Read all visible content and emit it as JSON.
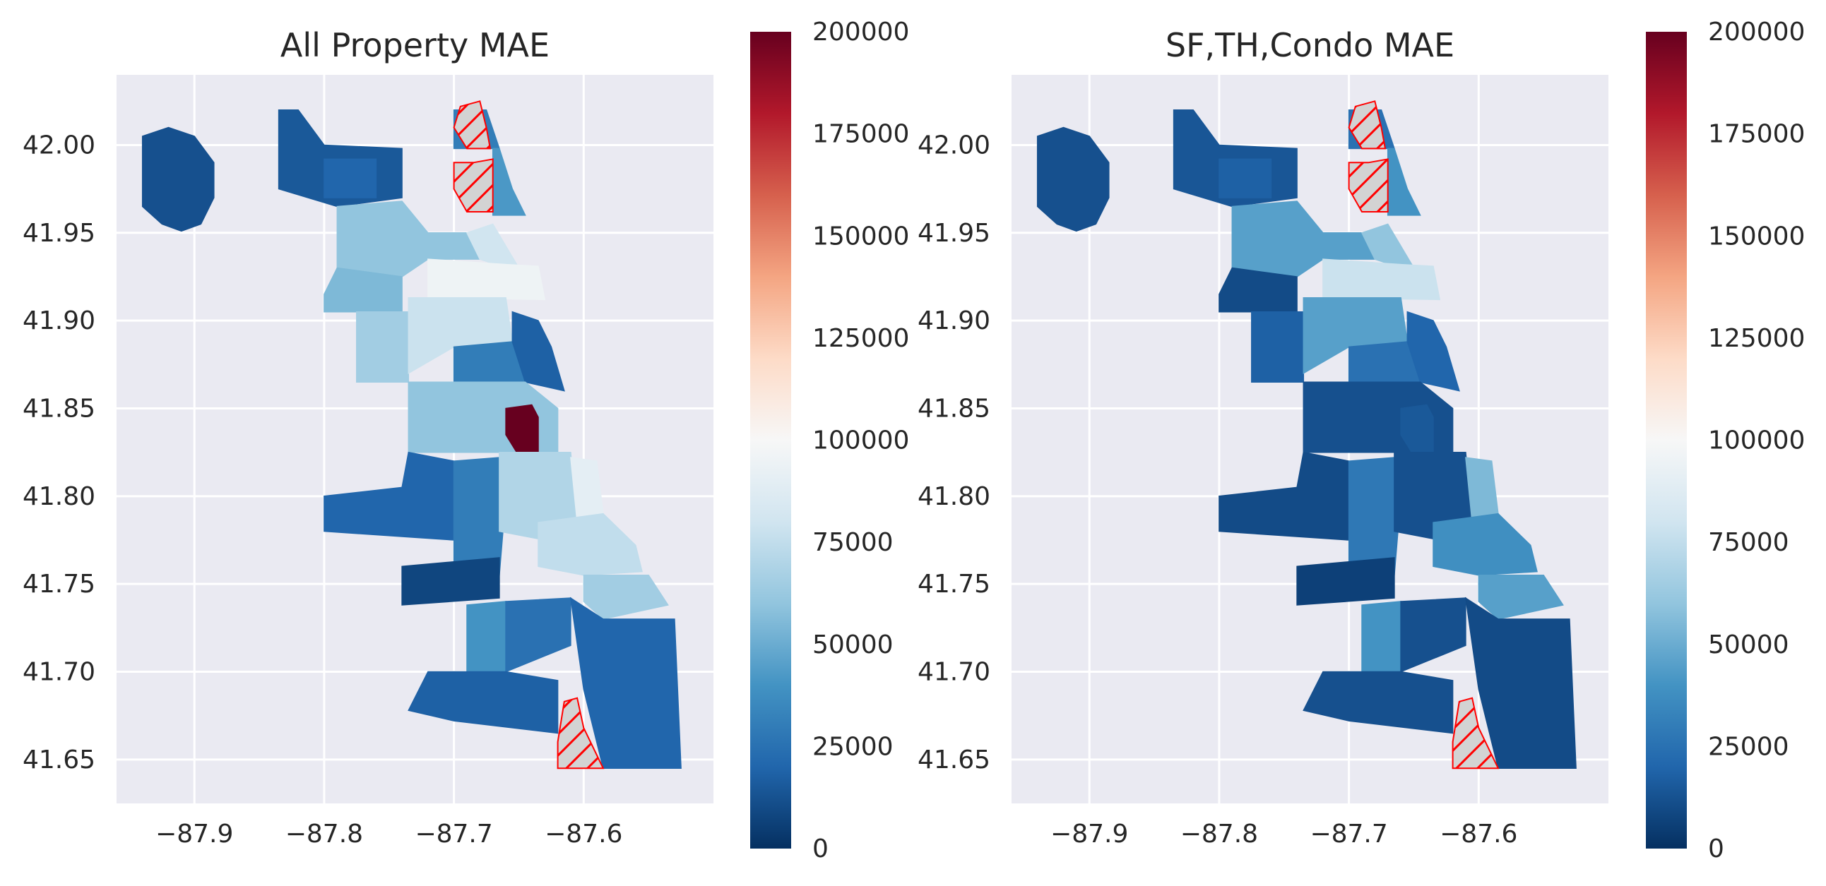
{
  "figure": {
    "panels": [
      {
        "title": "All Property MAE",
        "colorbar": {
          "label_values": [
            "0",
            "25000",
            "50000",
            "75000",
            "100000",
            "125000",
            "150000",
            "175000",
            "200000"
          ],
          "range": [
            0,
            200000
          ],
          "colormap": "RdBu_r"
        },
        "map": {
          "mae_by_area": [
            {
              "area": "far-northwest",
              "mae": 12000
            },
            {
              "area": "north-central-1",
              "mae": 15000
            },
            {
              "area": "north-central-2",
              "mae": 20000
            },
            {
              "area": "north-lakeshore-top",
              "mae": 30000
            },
            {
              "area": "north-lakeshore-2",
              "mae": 42000
            },
            {
              "area": "north-mid",
              "mae": 60000
            },
            {
              "area": "north-mid-2",
              "mae": 80000
            },
            {
              "area": "north-inner",
              "mae": 95000
            },
            {
              "area": "west-1",
              "mae": 55000
            },
            {
              "area": "west-2",
              "mae": 65000
            },
            {
              "area": "west-3",
              "mae": 78000
            },
            {
              "area": "near-loop",
              "mae": 30000
            },
            {
              "area": "loop",
              "mae": 18000
            },
            {
              "area": "near-south",
              "mae": 60000
            },
            {
              "area": "bridgeport-hotspot",
              "mae": 200000
            },
            {
              "area": "southwest-1",
              "mae": 20000
            },
            {
              "area": "southwest-2",
              "mae": 30000
            },
            {
              "area": "south-mid-1",
              "mae": 70000
            },
            {
              "area": "south-lakeshore-1",
              "mae": 90000
            },
            {
              "area": "south-lakeshore-2",
              "mae": 75000
            },
            {
              "area": "south-lakeshore-3",
              "mae": 65000
            },
            {
              "area": "far-southwest-1",
              "mae": 8000
            },
            {
              "area": "far-southwest-2",
              "mae": 40000
            },
            {
              "area": "far-south-1",
              "mae": 25000
            },
            {
              "area": "far-south-2",
              "mae": 20000
            },
            {
              "area": "far-south-3",
              "mae": 18000
            }
          ]
        }
      },
      {
        "title": "SF,TH,Condo MAE",
        "colorbar": {
          "label_values": [
            "0",
            "25000",
            "50000",
            "75000",
            "100000",
            "125000",
            "150000",
            "175000",
            "200000"
          ],
          "range": [
            0,
            200000
          ],
          "colormap": "RdBu_r"
        },
        "map": {
          "mae_by_area": [
            {
              "area": "far-northwest",
              "mae": 12000
            },
            {
              "area": "north-central-1",
              "mae": 14000
            },
            {
              "area": "north-central-2",
              "mae": 18000
            },
            {
              "area": "north-lakeshore-top",
              "mae": 25000
            },
            {
              "area": "north-lakeshore-2",
              "mae": 40000
            },
            {
              "area": "north-mid",
              "mae": 45000
            },
            {
              "area": "north-mid-2",
              "mae": 60000
            },
            {
              "area": "north-inner",
              "mae": 78000
            },
            {
              "area": "west-1",
              "mae": 10000
            },
            {
              "area": "west-2",
              "mae": 18000
            },
            {
              "area": "west-3",
              "mae": 45000
            },
            {
              "area": "near-loop",
              "mae": 25000
            },
            {
              "area": "loop",
              "mae": 20000
            },
            {
              "area": "near-south",
              "mae": 12000
            },
            {
              "area": "bridgeport-hotspot",
              "mae": 15000
            },
            {
              "area": "southwest-1",
              "mae": 10000
            },
            {
              "area": "southwest-2",
              "mae": 28000
            },
            {
              "area": "south-mid-1",
              "mae": 12000
            },
            {
              "area": "south-lakeshore-1",
              "mae": 55000
            },
            {
              "area": "south-lakeshore-2",
              "mae": 38000
            },
            {
              "area": "south-lakeshore-3",
              "mae": 45000
            },
            {
              "area": "far-southwest-1",
              "mae": 6000
            },
            {
              "area": "far-southwest-2",
              "mae": 40000
            },
            {
              "area": "far-south-1",
              "mae": 12000
            },
            {
              "area": "far-south-2",
              "mae": 10000
            },
            {
              "area": "far-south-3",
              "mae": 12000
            }
          ]
        }
      }
    ],
    "axes": {
      "x_tick_labels": [
        "−87.9",
        "−87.8",
        "−87.7",
        "−87.6"
      ],
      "y_tick_labels": [
        "42.00",
        "41.95",
        "41.90",
        "41.85",
        "41.80",
        "41.75",
        "41.70",
        "41.65"
      ]
    },
    "style": {
      "axes_background": "#eaeaf2",
      "gridline_color": "#ffffff",
      "missing_fill": "#d3d3d3",
      "missing_hatch": "#ff0000",
      "missing_areas": [
        "north-top-hatch",
        "north-mid-hatch",
        "far-south-hatch"
      ]
    }
  }
}
